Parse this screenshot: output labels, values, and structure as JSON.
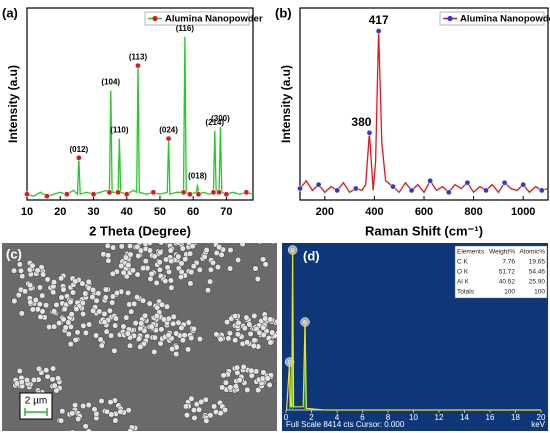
{
  "chart_data": [
    {
      "type": "line",
      "panel": "(a)",
      "xlabel": "2 Theta (Degree)",
      "ylabel": "Intensity (a.u)",
      "xlim": [
        10,
        78
      ],
      "xticks": [
        10,
        20,
        30,
        40,
        50,
        60,
        70
      ],
      "ylim": [
        0,
        100
      ],
      "x": [
        10,
        12,
        14,
        16,
        18,
        20,
        22,
        24,
        25.2,
        25.6,
        26,
        28,
        30,
        32,
        34,
        34.8,
        35.2,
        35.6,
        37.4,
        37.8,
        38.2,
        40,
        42,
        43,
        43.4,
        43.8,
        46,
        48,
        50,
        52.2,
        52.6,
        53,
        55,
        57.1,
        57.5,
        57.9,
        59,
        61,
        61.3,
        61.6,
        63,
        65,
        66.1,
        66.5,
        66.9,
        67.8,
        68.2,
        68.6,
        70,
        72,
        74,
        76,
        78
      ],
      "series": [
        {
          "name": "Alumina Nanopowder",
          "color": "#22cc22",
          "marker_color": "#e8141c",
          "values": [
            3,
            2,
            4,
            2,
            3,
            4,
            3,
            5,
            3,
            22,
            3,
            4,
            3,
            4,
            5,
            4,
            57,
            4,
            4,
            32,
            4,
            3,
            5,
            4,
            70,
            4,
            3,
            4,
            3,
            4,
            32,
            3,
            4,
            4,
            85,
            4,
            3,
            4,
            8,
            3,
            4,
            3,
            4,
            36,
            5,
            4,
            38,
            4,
            3,
            4,
            3,
            4,
            3
          ]
        }
      ],
      "annotations": [
        {
          "text": "(012)",
          "x": 25.6
        },
        {
          "text": "(104)",
          "x": 35.2
        },
        {
          "text": "(110)",
          "x": 37.8
        },
        {
          "text": "(113)",
          "x": 43.4
        },
        {
          "text": "(024)",
          "x": 52.6
        },
        {
          "text": "(116)",
          "x": 57.5
        },
        {
          "text": "(018)",
          "x": 61.3
        },
        {
          "text": "(214)",
          "x": 66.5
        },
        {
          "text": "(300)",
          "x": 68.2
        }
      ]
    },
    {
      "type": "line",
      "panel": "(b)",
      "xlabel": "Raman Shift (cm⁻¹)",
      "ylabel": "Intensity (a.u)",
      "xlim": [
        100,
        1100
      ],
      "xticks": [
        200,
        400,
        600,
        800,
        1000
      ],
      "ylim": [
        0,
        100
      ],
      "x": [
        100,
        125,
        150,
        175,
        200,
        225,
        250,
        275,
        300,
        325,
        350,
        365,
        380,
        395,
        405,
        417,
        430,
        445,
        475,
        500,
        525,
        550,
        575,
        600,
        625,
        650,
        675,
        700,
        725,
        750,
        775,
        800,
        825,
        850,
        875,
        900,
        925,
        950,
        975,
        1000,
        1025,
        1050,
        1075,
        1100
      ],
      "series": [
        {
          "name": "Alumina Nanopowder",
          "color": "#e8141c",
          "marker_color": "#2a3bd8",
          "values": [
            6,
            10,
            5,
            8,
            4,
            7,
            5,
            9,
            4,
            6,
            5,
            8,
            35,
            5,
            20,
            88,
            30,
            10,
            7,
            4,
            9,
            5,
            8,
            4,
            10,
            5,
            7,
            4,
            8,
            6,
            9,
            4,
            7,
            5,
            8,
            4,
            9,
            6,
            5,
            8,
            4,
            7,
            5,
            6
          ]
        }
      ],
      "peak_labels": [
        380,
        417
      ]
    },
    {
      "type": "image",
      "panel": "(c)",
      "scale_label": "2 µm"
    },
    {
      "type": "spectrum",
      "panel": "(d)",
      "xlim": [
        0,
        20
      ],
      "xticks": [
        0,
        2,
        4,
        6,
        8,
        10,
        12,
        14,
        16,
        18,
        20
      ],
      "ylim": [
        0,
        100
      ],
      "x_unit": "keV",
      "footer": "Full Scale 8414 cts Cursor: 0.000",
      "x": [
        0.05,
        0.28,
        0.36,
        0.45,
        0.52,
        0.6,
        1.35,
        1.49,
        1.6,
        3,
        20
      ],
      "series": [
        {
          "color": "#f0e020",
          "values": [
            0,
            30,
            2,
            2,
            100,
            2,
            2,
            55,
            1,
            0,
            0
          ]
        }
      ],
      "annotations": [
        {
          "text": "C",
          "x": 0.28
        },
        {
          "text": "O",
          "x": 0.52
        },
        {
          "text": "Al",
          "x": 1.49
        }
      ],
      "table": {
        "header": [
          "Elements",
          "Weight%",
          "Atomic%"
        ],
        "rows": [
          [
            "C K",
            "7.76",
            "19.65"
          ],
          [
            "O K",
            "51.72",
            "54.46"
          ],
          [
            "Al K",
            "40.52",
            "25.90"
          ],
          [
            "Totals",
            "100",
            "100"
          ]
        ]
      }
    }
  ]
}
